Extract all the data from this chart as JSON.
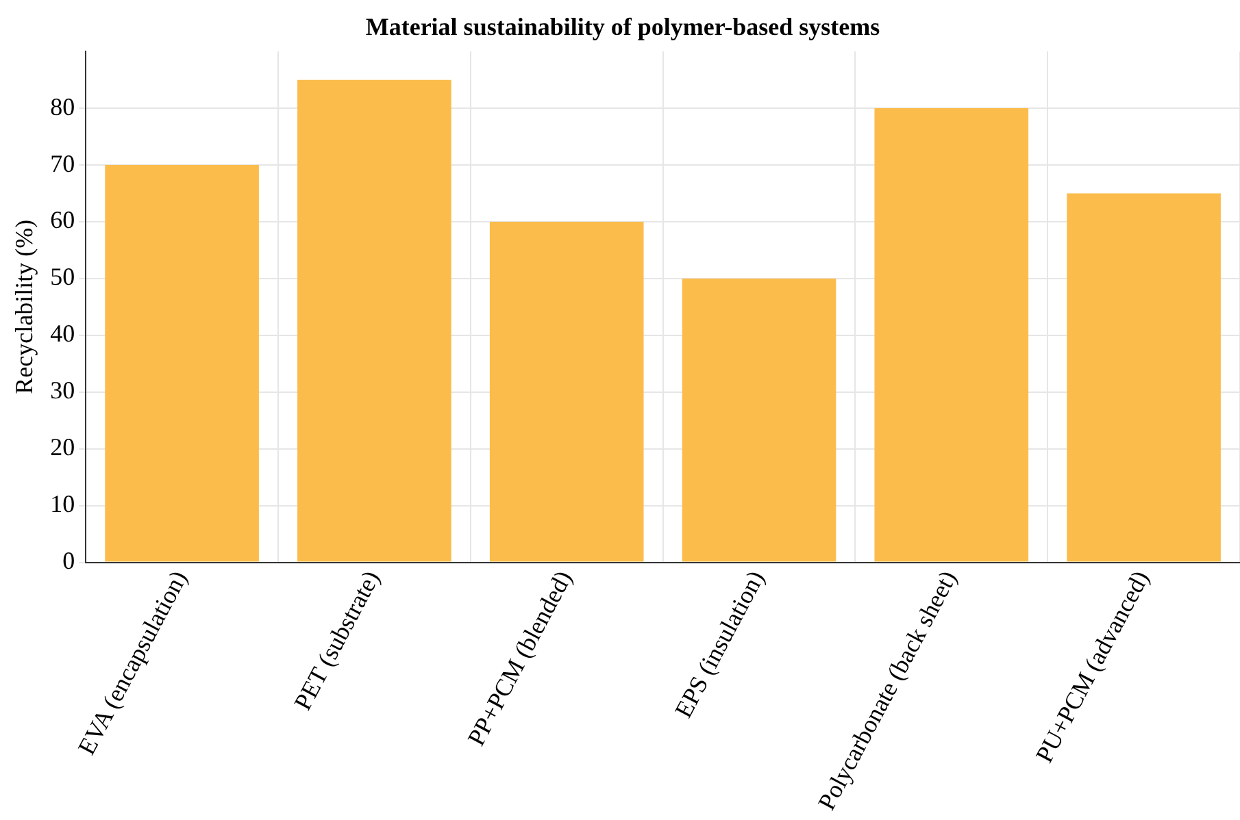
{
  "chart_data": {
    "type": "bar",
    "title": "Material sustainability of polymer-based systems",
    "ylabel": "Recyclability (%)",
    "categories": [
      "EVA (encapsulation)",
      "PET (substrate)",
      "PP+PCM (blended)",
      "EPS (insulation)",
      "Polycarbonate (back sheet)",
      "PU+PCM (advanced)"
    ],
    "values": [
      70,
      85,
      60,
      50,
      80,
      65
    ],
    "color": "#fbbc4b",
    "ylim": [
      0,
      90
    ],
    "yticks": [
      0,
      10,
      20,
      30,
      40,
      50,
      60,
      70,
      80
    ],
    "grid": true,
    "legend": false
  }
}
